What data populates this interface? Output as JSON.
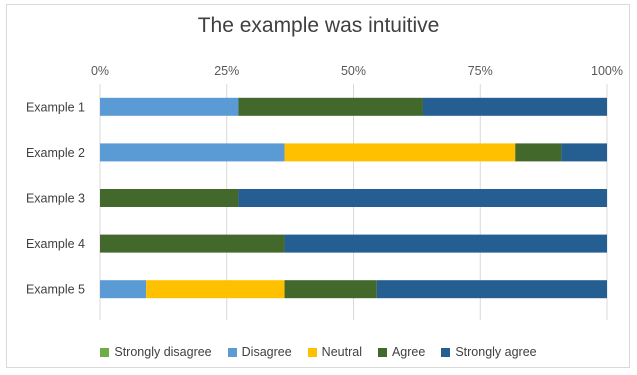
{
  "chart_data": {
    "type": "bar",
    "orientation": "horizontal",
    "stacked": "percent",
    "title": "The example was intuitive",
    "xlim": [
      0,
      100
    ],
    "x_ticks": [
      "0%",
      "25%",
      "50%",
      "75%",
      "100%"
    ],
    "x_tick_values": [
      0,
      25,
      50,
      75,
      100
    ],
    "x_axis_position": "top",
    "grid": true,
    "legend_position": "bottom",
    "categories": [
      "Example 1",
      "Example 2",
      "Example 3",
      "Example 4",
      "Example 5"
    ],
    "series": [
      {
        "name": "Strongly disagree",
        "color": "#70ad47",
        "values": [
          0,
          0,
          0,
          0,
          0
        ]
      },
      {
        "name": "Disagree",
        "color": "#5b9bd5",
        "values": [
          27.3,
          36.4,
          0,
          0,
          9.1
        ]
      },
      {
        "name": "Neutral",
        "color": "#ffc000",
        "values": [
          0,
          45.5,
          0,
          0,
          27.3
        ]
      },
      {
        "name": "Agree",
        "color": "#43682b",
        "values": [
          36.4,
          9.1,
          27.3,
          36.4,
          18.2
        ]
      },
      {
        "name": "Strongly agree",
        "color": "#255e91",
        "values": [
          36.3,
          9.0,
          72.7,
          63.6,
          45.4
        ]
      }
    ]
  }
}
